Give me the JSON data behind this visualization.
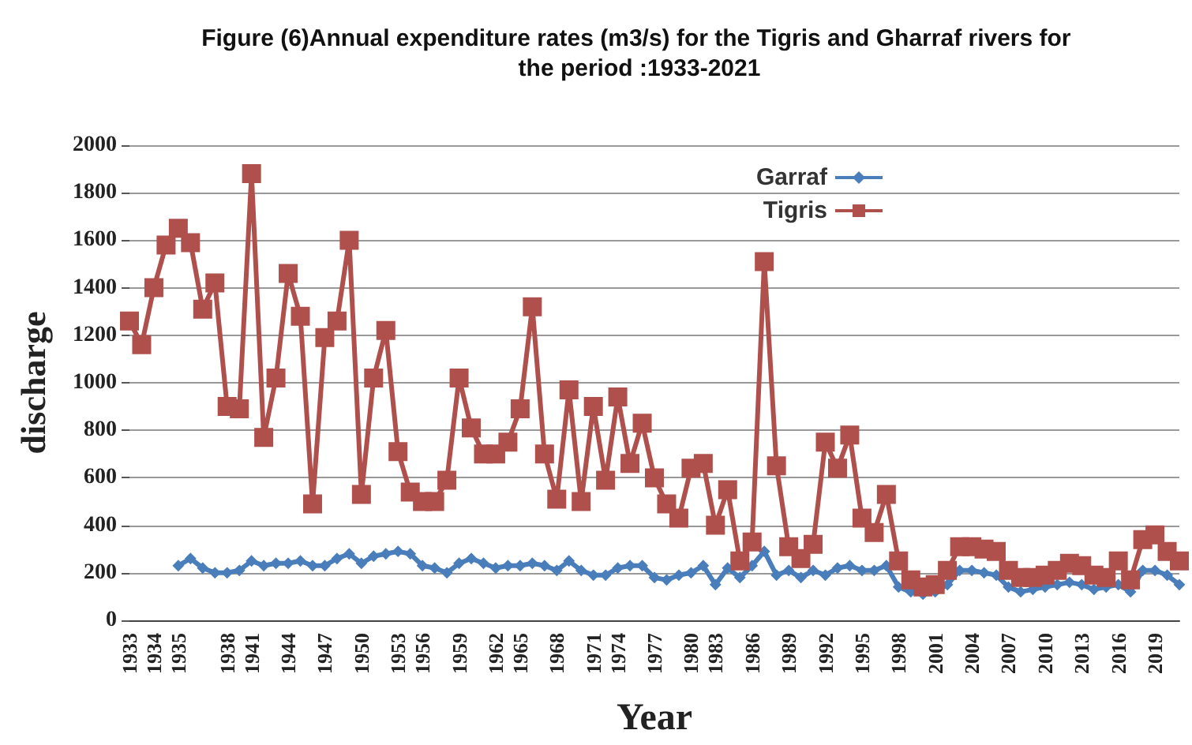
{
  "chart_data": {
    "type": "line",
    "title": "Figure (6)Annual expenditure rates (m3/s) for the Tigris and Gharraf rivers for the period :1933-2021",
    "xlabel": "Year",
    "ylabel": "discharge",
    "categories": [
      "1933",
      null,
      "1934",
      null,
      "1935",
      null,
      null,
      null,
      "1938",
      null,
      "1941",
      null,
      null,
      "1944",
      null,
      null,
      "1947",
      null,
      null,
      "1950",
      null,
      null,
      "1953",
      null,
      "1956",
      null,
      null,
      "1959",
      null,
      null,
      "1962",
      null,
      "1965",
      null,
      null,
      "1968",
      null,
      null,
      "1971",
      null,
      "1974",
      null,
      null,
      "1977",
      null,
      null,
      "1980",
      null,
      "1983",
      null,
      null,
      "1986",
      null,
      null,
      "1989",
      null,
      null,
      "1992",
      null,
      null,
      "1995",
      null,
      null,
      "1998",
      null,
      null,
      "2001",
      null,
      null,
      "2004",
      null,
      null,
      "2007",
      null,
      null,
      "2010",
      null,
      null,
      "2013",
      null,
      null,
      "2016",
      null,
      null,
      "2019",
      null,
      null
    ],
    "series": [
      {
        "name": "Garraf",
        "color": "#4a7ebb",
        "marker": "diamond",
        "values": [
          null,
          null,
          null,
          null,
          230,
          260,
          220,
          200,
          200,
          210,
          250,
          230,
          240,
          240,
          250,
          230,
          230,
          260,
          280,
          240,
          270,
          280,
          290,
          280,
          230,
          220,
          200,
          240,
          260,
          240,
          220,
          230,
          230,
          240,
          230,
          210,
          250,
          210,
          190,
          190,
          220,
          230,
          230,
          180,
          170,
          190,
          200,
          230,
          150,
          220,
          180,
          230,
          290,
          190,
          210,
          180,
          210,
          190,
          220,
          230,
          210,
          210,
          230,
          140,
          120,
          110,
          120,
          150,
          210,
          210,
          200,
          190,
          140,
          120,
          130,
          140,
          150,
          160,
          150,
          130,
          140,
          150,
          120,
          210,
          210,
          190,
          150
        ]
      },
      {
        "name": "Tigris",
        "color": "#b0504c",
        "marker": "square",
        "values": [
          1260,
          1160,
          1400,
          1580,
          1650,
          1590,
          1310,
          1420,
          900,
          890,
          1880,
          770,
          1020,
          1460,
          1280,
          490,
          1190,
          1260,
          1600,
          530,
          1020,
          1220,
          710,
          540,
          500,
          500,
          590,
          1020,
          810,
          700,
          700,
          750,
          890,
          1320,
          700,
          510,
          970,
          500,
          900,
          590,
          940,
          660,
          830,
          600,
          490,
          430,
          640,
          660,
          400,
          550,
          250,
          330,
          1510,
          650,
          310,
          260,
          320,
          750,
          640,
          780,
          430,
          370,
          530,
          250,
          170,
          140,
          150,
          210,
          310,
          310,
          300,
          290,
          210,
          180,
          180,
          190,
          210,
          240,
          230,
          190,
          180,
          250,
          170,
          340,
          360,
          290,
          250
        ]
      }
    ],
    "ylim": [
      0,
      2000
    ],
    "yticks": [
      0,
      200,
      400,
      600,
      800,
      1000,
      1200,
      1400,
      1600,
      1800,
      2000
    ],
    "grid": "y",
    "legend": "top right"
  }
}
